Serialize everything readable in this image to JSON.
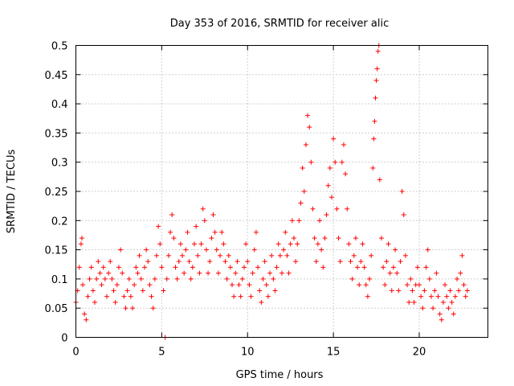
{
  "chart_data": {
    "type": "scatter",
    "title": "Day 353 of 2016, SRMTID for receiver alic",
    "xlabel": "GPS time / hours",
    "ylabel": "SRMTID / TECUs",
    "xlim": [
      0,
      24
    ],
    "ylim": [
      0,
      0.5
    ],
    "x_ticks": [
      0,
      5,
      10,
      15,
      20
    ],
    "x_tick_labels": [
      "0",
      "5",
      "10",
      "15",
      "20"
    ],
    "y_ticks": [
      0,
      0.05,
      0.1,
      0.15,
      0.2,
      0.25,
      0.3,
      0.35,
      0.4,
      0.45,
      0.5
    ],
    "y_tick_labels": [
      "0",
      "0.05",
      "0.1",
      "0.15",
      "0.2",
      "0.25",
      "0.3",
      "0.35",
      "0.4",
      "0.45",
      "0.5"
    ],
    "grid": true,
    "marker": "+",
    "color": "#ff0000",
    "series": [
      {
        "name": "SRMTID",
        "points": [
          [
            0.0,
            0.06
          ],
          [
            0.1,
            0.08
          ],
          [
            0.2,
            0.12
          ],
          [
            0.3,
            0.16
          ],
          [
            0.35,
            0.17
          ],
          [
            0.4,
            0.09
          ],
          [
            0.5,
            0.04
          ],
          [
            0.6,
            0.03
          ],
          [
            0.7,
            0.07
          ],
          [
            0.8,
            0.1
          ],
          [
            0.9,
            0.12
          ],
          [
            1.0,
            0.08
          ],
          [
            1.1,
            0.06
          ],
          [
            1.2,
            0.1
          ],
          [
            1.3,
            0.13
          ],
          [
            1.4,
            0.11
          ],
          [
            1.5,
            0.09
          ],
          [
            1.6,
            0.12
          ],
          [
            1.7,
            0.1
          ],
          [
            1.8,
            0.07
          ],
          [
            1.9,
            0.11
          ],
          [
            2.0,
            0.13
          ],
          [
            2.1,
            0.1
          ],
          [
            2.2,
            0.08
          ],
          [
            2.3,
            0.06
          ],
          [
            2.4,
            0.09
          ],
          [
            2.5,
            0.12
          ],
          [
            2.6,
            0.15
          ],
          [
            2.7,
            0.11
          ],
          [
            2.8,
            0.07
          ],
          [
            2.9,
            0.05
          ],
          [
            3.0,
            0.08
          ],
          [
            3.1,
            0.1
          ],
          [
            3.2,
            0.07
          ],
          [
            3.3,
            0.05
          ],
          [
            3.4,
            0.09
          ],
          [
            3.5,
            0.12
          ],
          [
            3.6,
            0.11
          ],
          [
            3.7,
            0.14
          ],
          [
            3.8,
            0.1
          ],
          [
            3.9,
            0.08
          ],
          [
            4.0,
            0.12
          ],
          [
            4.1,
            0.15
          ],
          [
            4.2,
            0.13
          ],
          [
            4.3,
            0.09
          ],
          [
            4.4,
            0.07
          ],
          [
            4.5,
            0.05
          ],
          [
            4.6,
            0.1
          ],
          [
            4.7,
            0.14
          ],
          [
            4.8,
            0.19
          ],
          [
            4.9,
            0.16
          ],
          [
            5.0,
            0.12
          ],
          [
            5.1,
            0.08
          ],
          [
            5.2,
            0.0
          ],
          [
            5.3,
            0.1
          ],
          [
            5.4,
            0.14
          ],
          [
            5.5,
            0.18
          ],
          [
            5.6,
            0.21
          ],
          [
            5.7,
            0.17
          ],
          [
            5.8,
            0.12
          ],
          [
            5.9,
            0.1
          ],
          [
            6.0,
            0.13
          ],
          [
            6.1,
            0.16
          ],
          [
            6.2,
            0.14
          ],
          [
            6.3,
            0.11
          ],
          [
            6.4,
            0.15
          ],
          [
            6.5,
            0.18
          ],
          [
            6.6,
            0.13
          ],
          [
            6.7,
            0.1
          ],
          [
            6.8,
            0.12
          ],
          [
            6.9,
            0.16
          ],
          [
            7.0,
            0.19
          ],
          [
            7.1,
            0.14
          ],
          [
            7.2,
            0.11
          ],
          [
            7.3,
            0.16
          ],
          [
            7.4,
            0.22
          ],
          [
            7.5,
            0.2
          ],
          [
            7.6,
            0.15
          ],
          [
            7.7,
            0.11
          ],
          [
            7.8,
            0.13
          ],
          [
            7.9,
            0.17
          ],
          [
            8.0,
            0.21
          ],
          [
            8.1,
            0.18
          ],
          [
            8.2,
            0.15
          ],
          [
            8.3,
            0.11
          ],
          [
            8.4,
            0.14
          ],
          [
            8.5,
            0.18
          ],
          [
            8.6,
            0.16
          ],
          [
            8.7,
            0.13
          ],
          [
            8.8,
            0.1
          ],
          [
            8.9,
            0.14
          ],
          [
            9.0,
            0.12
          ],
          [
            9.1,
            0.09
          ],
          [
            9.2,
            0.07
          ],
          [
            9.3,
            0.11
          ],
          [
            9.4,
            0.13
          ],
          [
            9.5,
            0.09
          ],
          [
            9.6,
            0.07
          ],
          [
            9.7,
            0.1
          ],
          [
            9.8,
            0.12
          ],
          [
            9.9,
            0.16
          ],
          [
            10.0,
            0.13
          ],
          [
            10.1,
            0.09
          ],
          [
            10.2,
            0.07
          ],
          [
            10.3,
            0.11
          ],
          [
            10.4,
            0.15
          ],
          [
            10.5,
            0.18
          ],
          [
            10.6,
            0.12
          ],
          [
            10.7,
            0.08
          ],
          [
            10.8,
            0.06
          ],
          [
            10.9,
            0.1
          ],
          [
            11.0,
            0.13
          ],
          [
            11.1,
            0.09
          ],
          [
            11.2,
            0.07
          ],
          [
            11.3,
            0.11
          ],
          [
            11.4,
            0.14
          ],
          [
            11.5,
            0.1
          ],
          [
            11.6,
            0.08
          ],
          [
            11.7,
            0.12
          ],
          [
            11.8,
            0.16
          ],
          [
            11.9,
            0.14
          ],
          [
            12.0,
            0.11
          ],
          [
            12.1,
            0.15
          ],
          [
            12.2,
            0.18
          ],
          [
            12.3,
            0.14
          ],
          [
            12.4,
            0.11
          ],
          [
            12.5,
            0.16
          ],
          [
            12.6,
            0.2
          ],
          [
            12.7,
            0.17
          ],
          [
            12.8,
            0.13
          ],
          [
            12.9,
            0.16
          ],
          [
            13.0,
            0.2
          ],
          [
            13.1,
            0.23
          ],
          [
            13.2,
            0.29
          ],
          [
            13.3,
            0.25
          ],
          [
            13.4,
            0.33
          ],
          [
            13.5,
            0.38
          ],
          [
            13.6,
            0.36
          ],
          [
            13.7,
            0.3
          ],
          [
            13.8,
            0.22
          ],
          [
            13.9,
            0.17
          ],
          [
            14.0,
            0.13
          ],
          [
            14.1,
            0.16
          ],
          [
            14.2,
            0.2
          ],
          [
            14.3,
            0.15
          ],
          [
            14.4,
            0.12
          ],
          [
            14.5,
            0.17
          ],
          [
            14.6,
            0.21
          ],
          [
            14.7,
            0.26
          ],
          [
            14.8,
            0.29
          ],
          [
            14.9,
            0.24
          ],
          [
            15.0,
            0.34
          ],
          [
            15.1,
            0.3
          ],
          [
            15.2,
            0.22
          ],
          [
            15.3,
            0.17
          ],
          [
            15.4,
            0.13
          ],
          [
            15.5,
            0.3
          ],
          [
            15.6,
            0.33
          ],
          [
            15.7,
            0.28
          ],
          [
            15.8,
            0.22
          ],
          [
            15.9,
            0.16
          ],
          [
            16.0,
            0.13
          ],
          [
            16.1,
            0.1
          ],
          [
            16.2,
            0.14
          ],
          [
            16.3,
            0.17
          ],
          [
            16.4,
            0.12
          ],
          [
            16.5,
            0.09
          ],
          [
            16.6,
            0.13
          ],
          [
            16.7,
            0.16
          ],
          [
            16.8,
            0.12
          ],
          [
            16.9,
            0.09
          ],
          [
            17.0,
            0.07
          ],
          [
            17.1,
            0.1
          ],
          [
            17.2,
            0.14
          ],
          [
            17.3,
            0.29
          ],
          [
            17.35,
            0.34
          ],
          [
            17.4,
            0.37
          ],
          [
            17.45,
            0.41
          ],
          [
            17.5,
            0.44
          ],
          [
            17.55,
            0.46
          ],
          [
            17.6,
            0.49
          ],
          [
            17.65,
            0.5
          ],
          [
            17.7,
            0.27
          ],
          [
            17.8,
            0.17
          ],
          [
            17.9,
            0.12
          ],
          [
            18.0,
            0.09
          ],
          [
            18.1,
            0.13
          ],
          [
            18.2,
            0.16
          ],
          [
            18.3,
            0.11
          ],
          [
            18.4,
            0.08
          ],
          [
            18.5,
            0.12
          ],
          [
            18.6,
            0.15
          ],
          [
            18.7,
            0.11
          ],
          [
            18.8,
            0.08
          ],
          [
            18.9,
            0.13
          ],
          [
            19.0,
            0.25
          ],
          [
            19.1,
            0.21
          ],
          [
            19.2,
            0.14
          ],
          [
            19.3,
            0.09
          ],
          [
            19.4,
            0.06
          ],
          [
            19.5,
            0.1
          ],
          [
            19.6,
            0.08
          ],
          [
            19.7,
            0.06
          ],
          [
            19.8,
            0.09
          ],
          [
            19.9,
            0.12
          ],
          [
            20.0,
            0.09
          ],
          [
            20.1,
            0.07
          ],
          [
            20.2,
            0.05
          ],
          [
            20.3,
            0.08
          ],
          [
            20.4,
            0.12
          ],
          [
            20.5,
            0.15
          ],
          [
            20.6,
            0.1
          ],
          [
            20.7,
            0.07
          ],
          [
            20.8,
            0.05
          ],
          [
            20.9,
            0.08
          ],
          [
            21.0,
            0.11
          ],
          [
            21.1,
            0.07
          ],
          [
            21.2,
            0.04
          ],
          [
            21.3,
            0.03
          ],
          [
            21.4,
            0.06
          ],
          [
            21.5,
            0.09
          ],
          [
            21.6,
            0.07
          ],
          [
            21.7,
            0.05
          ],
          [
            21.8,
            0.08
          ],
          [
            21.9,
            0.06
          ],
          [
            22.0,
            0.04
          ],
          [
            22.1,
            0.07
          ],
          [
            22.2,
            0.1
          ],
          [
            22.3,
            0.08
          ],
          [
            22.4,
            0.11
          ],
          [
            22.5,
            0.14
          ],
          [
            22.6,
            0.09
          ],
          [
            22.7,
            0.07
          ],
          [
            22.8,
            0.08
          ]
        ]
      }
    ]
  }
}
